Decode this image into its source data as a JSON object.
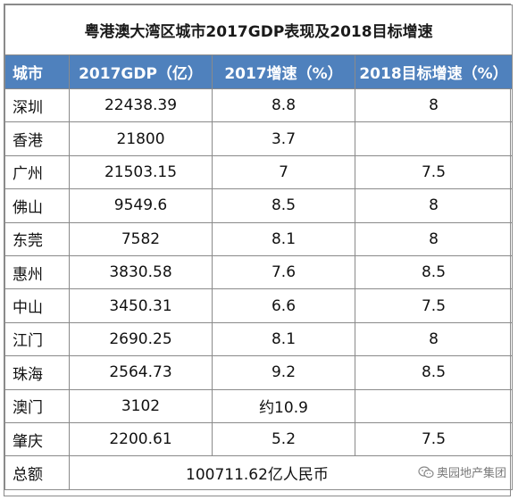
{
  "chart_data": {
    "type": "table",
    "title": "粤港澳大湾区城市2017GDP表现及2018目标增速",
    "columns": [
      "城市",
      "2017GDP（亿）",
      "2017增速（%）",
      "2018目标增速（%）"
    ],
    "rows": [
      {
        "city": "深圳",
        "gdp": "22438.39",
        "growth_2017": "8.8",
        "target_2018": "8"
      },
      {
        "city": "香港",
        "gdp": "21800",
        "growth_2017": "3.7",
        "target_2018": ""
      },
      {
        "city": "广州",
        "gdp": "21503.15",
        "growth_2017": "7",
        "target_2018": "7.5"
      },
      {
        "city": "佛山",
        "gdp": "9549.6",
        "growth_2017": "8.5",
        "target_2018": "8"
      },
      {
        "city": "东莞",
        "gdp": "7582",
        "growth_2017": "8.1",
        "target_2018": "8"
      },
      {
        "city": "惠州",
        "gdp": "3830.58",
        "growth_2017": "7.6",
        "target_2018": "8.5"
      },
      {
        "city": "中山",
        "gdp": "3450.31",
        "growth_2017": "6.6",
        "target_2018": "7.5"
      },
      {
        "city": "江门",
        "gdp": "2690.25",
        "growth_2017": "8.1",
        "target_2018": "8"
      },
      {
        "city": "珠海",
        "gdp": "2564.73",
        "growth_2017": "9.2",
        "target_2018": "8.5"
      },
      {
        "city": "澳门",
        "gdp": "3102",
        "growth_2017": "约10.9",
        "target_2018": ""
      },
      {
        "city": "肇庆",
        "gdp": "2200.61",
        "growth_2017": "5.2",
        "target_2018": "7.5"
      }
    ],
    "total": {
      "label": "总额",
      "value": "100711.62亿人民币"
    }
  },
  "watermark": {
    "text": "奥园地产集团",
    "icon": "wechat-icon"
  },
  "colors": {
    "header_bg": "#4f81bd",
    "header_text": "#ffffff",
    "border": "#8a8a8a"
  }
}
